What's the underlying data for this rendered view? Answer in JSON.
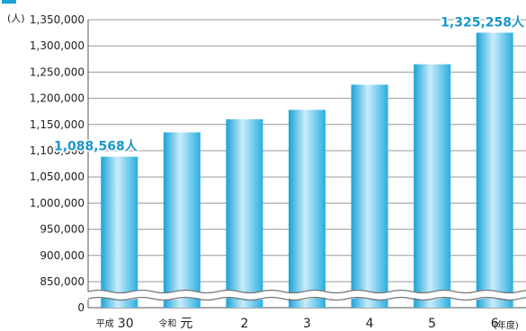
{
  "chart_data": {
    "type": "bar",
    "title": "",
    "unit_label": "(人)",
    "x_unit_label": "(年度)",
    "categories": [
      {
        "era": "平成",
        "year": "30"
      },
      {
        "era": "令和",
        "year": "元"
      },
      {
        "era": "",
        "year": "2"
      },
      {
        "era": "",
        "year": "3"
      },
      {
        "era": "",
        "year": "4"
      },
      {
        "era": "",
        "year": "5"
      },
      {
        "era": "",
        "year": "6"
      }
    ],
    "values": [
      1088568,
      1135000,
      1160000,
      1178000,
      1226000,
      1265000,
      1325258
    ],
    "y_ticks": [
      "1,350,000",
      "1,300,000",
      "1,250,000",
      "1,200,000",
      "1,150,000",
      "1,100,000",
      "1,050,000",
      "1,000,000",
      "950,000",
      "900,000",
      "850,000"
    ],
    "y_zero_label": "0",
    "ylim": [
      850000,
      1350000
    ],
    "axis_break": true,
    "grid": "horizontal",
    "annotations": [
      {
        "bar_index": 0,
        "text": "1,088,568人"
      },
      {
        "bar_index": 6,
        "text": "1,325,258人"
      }
    ],
    "colors": {
      "bar_edge": "#1aa3d6",
      "bar_light": "#c9ecfb",
      "bar_mid": "#5cc4ea",
      "callout": "#1a96cc",
      "grid": "#9a9a9a",
      "title_bar": "#1aa3d6"
    }
  }
}
